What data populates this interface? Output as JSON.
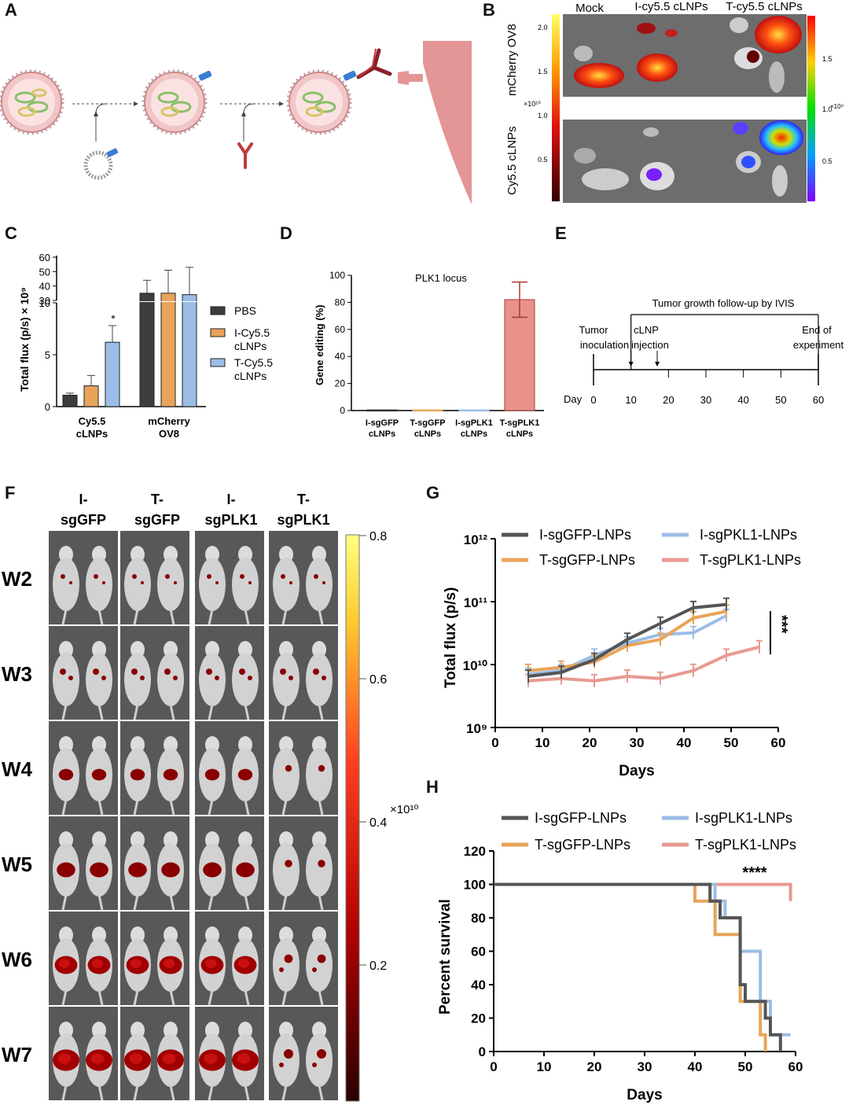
{
  "colors": {
    "pbs": "#3d3d3d",
    "orange": "#e8a45a",
    "blue": "#9bbde6",
    "red": "#e79a91",
    "dark": "#555555",
    "bar_red": "#e8928a",
    "bar_red_edge": "#a83a30",
    "virus_pink": "#f1c6c6",
    "tumor_pink": "#e49595"
  },
  "panelA": {
    "label": "A"
  },
  "panelB": {
    "label": "B",
    "col_labels": [
      "Mock",
      "I-cy5.5 cLNPs",
      "T-cy5.5 cLNPs"
    ],
    "row_labels": [
      "mCherry OV8",
      "Cy5.5 cLNPs"
    ],
    "left_scale_ticks": [
      "2.0",
      "1.5",
      "1.0",
      "0.5"
    ],
    "left_scale_unit": "×10¹⁰",
    "right_scale_ticks": [
      "1.5",
      "1.0",
      "0.5"
    ],
    "right_scale_unit": "×10⁹"
  },
  "panelC": {
    "label": "C",
    "ylabel": "Total flux (p/s) × 10⁹",
    "chart_data": {
      "type": "bar",
      "categories": [
        "Cy5.5 cLNPs",
        "mCherry OV8"
      ],
      "category_lines": [
        [
          "Cy5.5",
          "cLNPs"
        ],
        [
          "mCherry",
          "OV8"
        ]
      ],
      "series": [
        {
          "name": "PBS",
          "values": [
            1.1,
            35
          ],
          "err": [
            0.2,
            9
          ]
        },
        {
          "name": "I-Cy5.5 cLNPs",
          "values": [
            2.0,
            35
          ],
          "err": [
            1.0,
            16
          ]
        },
        {
          "name": "T-Cy5.5 cLNPs",
          "values": [
            6.2,
            34
          ],
          "err": [
            1.6,
            19
          ]
        }
      ],
      "legend_lines": [
        [
          "PBS"
        ],
        [
          "I-Cy5.5",
          "cLNPs"
        ],
        [
          "T-Cy5.5",
          "cLNPs"
        ]
      ],
      "annotation": "*",
      "y_lower_ticks": [
        "0",
        "5",
        "10"
      ],
      "y_upper_ticks": [
        "30",
        "40",
        "50",
        "60"
      ]
    }
  },
  "panelD": {
    "label": "D",
    "chart_data": {
      "type": "bar",
      "title": "PLK1 locus",
      "ylabel": "Gene editing (%)",
      "categories": [
        "I-sgGFP cLNPs",
        "T-sgGFP cLNPs",
        "I-sgPLK1 cLNPs",
        "T-sgPLK1 cLNPs"
      ],
      "category_lines": [
        [
          "I-sgGFP",
          "cLNPs"
        ],
        [
          "T-sgGFP",
          "cLNPs"
        ],
        [
          "I-sgPLK1",
          "cLNPs"
        ],
        [
          "T-sgPLK1",
          "cLNPs"
        ]
      ],
      "values": [
        0.5,
        0.5,
        0.5,
        82
      ],
      "err": [
        0,
        0,
        0,
        13
      ],
      "ylim": [
        0,
        100
      ],
      "yticks": [
        "0",
        "20",
        "40",
        "60",
        "80",
        "100"
      ]
    }
  },
  "panelE": {
    "label": "E",
    "header": "Tumor growth follow-up by IVIS",
    "events": [
      {
        "lines": [
          "Tumor",
          "inoculation"
        ]
      },
      {
        "lines": [
          "cLNP",
          "injection"
        ]
      },
      {
        "lines": [
          "End of",
          "experiment"
        ]
      }
    ],
    "axis_label": "Day",
    "ticks": [
      "0",
      "10",
      "20",
      "30",
      "40",
      "50",
      "60"
    ]
  },
  "panelF": {
    "label": "F",
    "col_labels": [
      [
        "I-",
        "sgGFP"
      ],
      [
        "T-",
        "sgGFP"
      ],
      [
        "I-",
        "sgPLK1"
      ],
      [
        "T-",
        "sgPLK1"
      ]
    ],
    "row_labels": [
      "W2",
      "W3",
      "W4",
      "W5",
      "W6",
      "W7"
    ],
    "scale_ticks": [
      "0.8",
      "0.6",
      "0.4",
      "0.2"
    ],
    "scale_unit": "×10¹⁰"
  },
  "panelG": {
    "label": "G",
    "chart_data": {
      "type": "line",
      "xlabel": "Days",
      "ylabel": "Total flux (p/s)",
      "xlim": [
        0,
        60
      ],
      "ylim_log10": [
        9,
        12
      ],
      "xticks": [
        "0",
        "10",
        "20",
        "30",
        "40",
        "50",
        "60"
      ],
      "yticks": [
        "10⁹",
        "10¹⁰",
        "10¹¹",
        "10¹²"
      ],
      "annotation": "***",
      "series": [
        {
          "name": "I-sgGFP-LNPs",
          "x": [
            7,
            14,
            21,
            28,
            35,
            42,
            49
          ],
          "y": [
            6500000000.0,
            7500000000.0,
            12000000000.0,
            25000000000.0,
            45000000000.0,
            80000000000.0,
            90000000000.0
          ]
        },
        {
          "name": "T-sgGFP-LNPs",
          "x": [
            7,
            14,
            21,
            28,
            35,
            42,
            49
          ],
          "y": [
            8000000000.0,
            9000000000.0,
            11000000000.0,
            20000000000.0,
            25000000000.0,
            55000000000.0,
            70000000000.0
          ]
        },
        {
          "name": "I-sgPKL1-LNPs",
          "x": [
            7,
            14,
            21,
            28,
            35,
            42,
            49
          ],
          "y": [
            7000000000.0,
            8000000000.0,
            14000000000.0,
            22000000000.0,
            30000000000.0,
            32000000000.0,
            60000000000.0
          ]
        },
        {
          "name": "T-sgPLK1-LNPs",
          "x": [
            7,
            14,
            21,
            28,
            35,
            42,
            49,
            56
          ],
          "y": [
            5500000000.0,
            6000000000.0,
            5500000000.0,
            6500000000.0,
            6000000000.0,
            8000000000.0,
            14000000000.0,
            19000000000.0
          ]
        }
      ]
    }
  },
  "panelH": {
    "label": "H",
    "chart_data": {
      "type": "line",
      "xlabel": "Days",
      "ylabel": "Percent survival",
      "xlim": [
        0,
        60
      ],
      "ylim": [
        0,
        120
      ],
      "xticks": [
        "0",
        "10",
        "20",
        "30",
        "40",
        "50",
        "60"
      ],
      "yticks": [
        "0",
        "20",
        "40",
        "60",
        "80",
        "100",
        "120"
      ],
      "annotation": "****",
      "series": [
        {
          "name": "I-sgGFP-LNPs",
          "x": [
            0,
            43,
            43,
            45,
            45,
            49,
            49,
            50,
            50,
            54,
            54,
            55,
            55,
            57,
            57
          ],
          "y": [
            100,
            100,
            90,
            90,
            80,
            80,
            40,
            40,
            30,
            30,
            20,
            20,
            10,
            10,
            0
          ]
        },
        {
          "name": "T-sgGFP-LNPs",
          "x": [
            0,
            40,
            40,
            44,
            44,
            49,
            49,
            53,
            53,
            54,
            54
          ],
          "y": [
            100,
            100,
            90,
            90,
            70,
            70,
            30,
            30,
            10,
            10,
            0
          ]
        },
        {
          "name": "I-sgPLK1-LNPs",
          "x": [
            0,
            44,
            44,
            46,
            46,
            49,
            49,
            53,
            53,
            55,
            55,
            59
          ],
          "y": [
            100,
            100,
            90,
            90,
            80,
            80,
            60,
            60,
            30,
            30,
            10,
            10
          ]
        },
        {
          "name": "T-sgPLK1-LNPs",
          "x": [
            0,
            59,
            59
          ],
          "y": [
            100,
            100,
            90
          ]
        }
      ]
    }
  }
}
